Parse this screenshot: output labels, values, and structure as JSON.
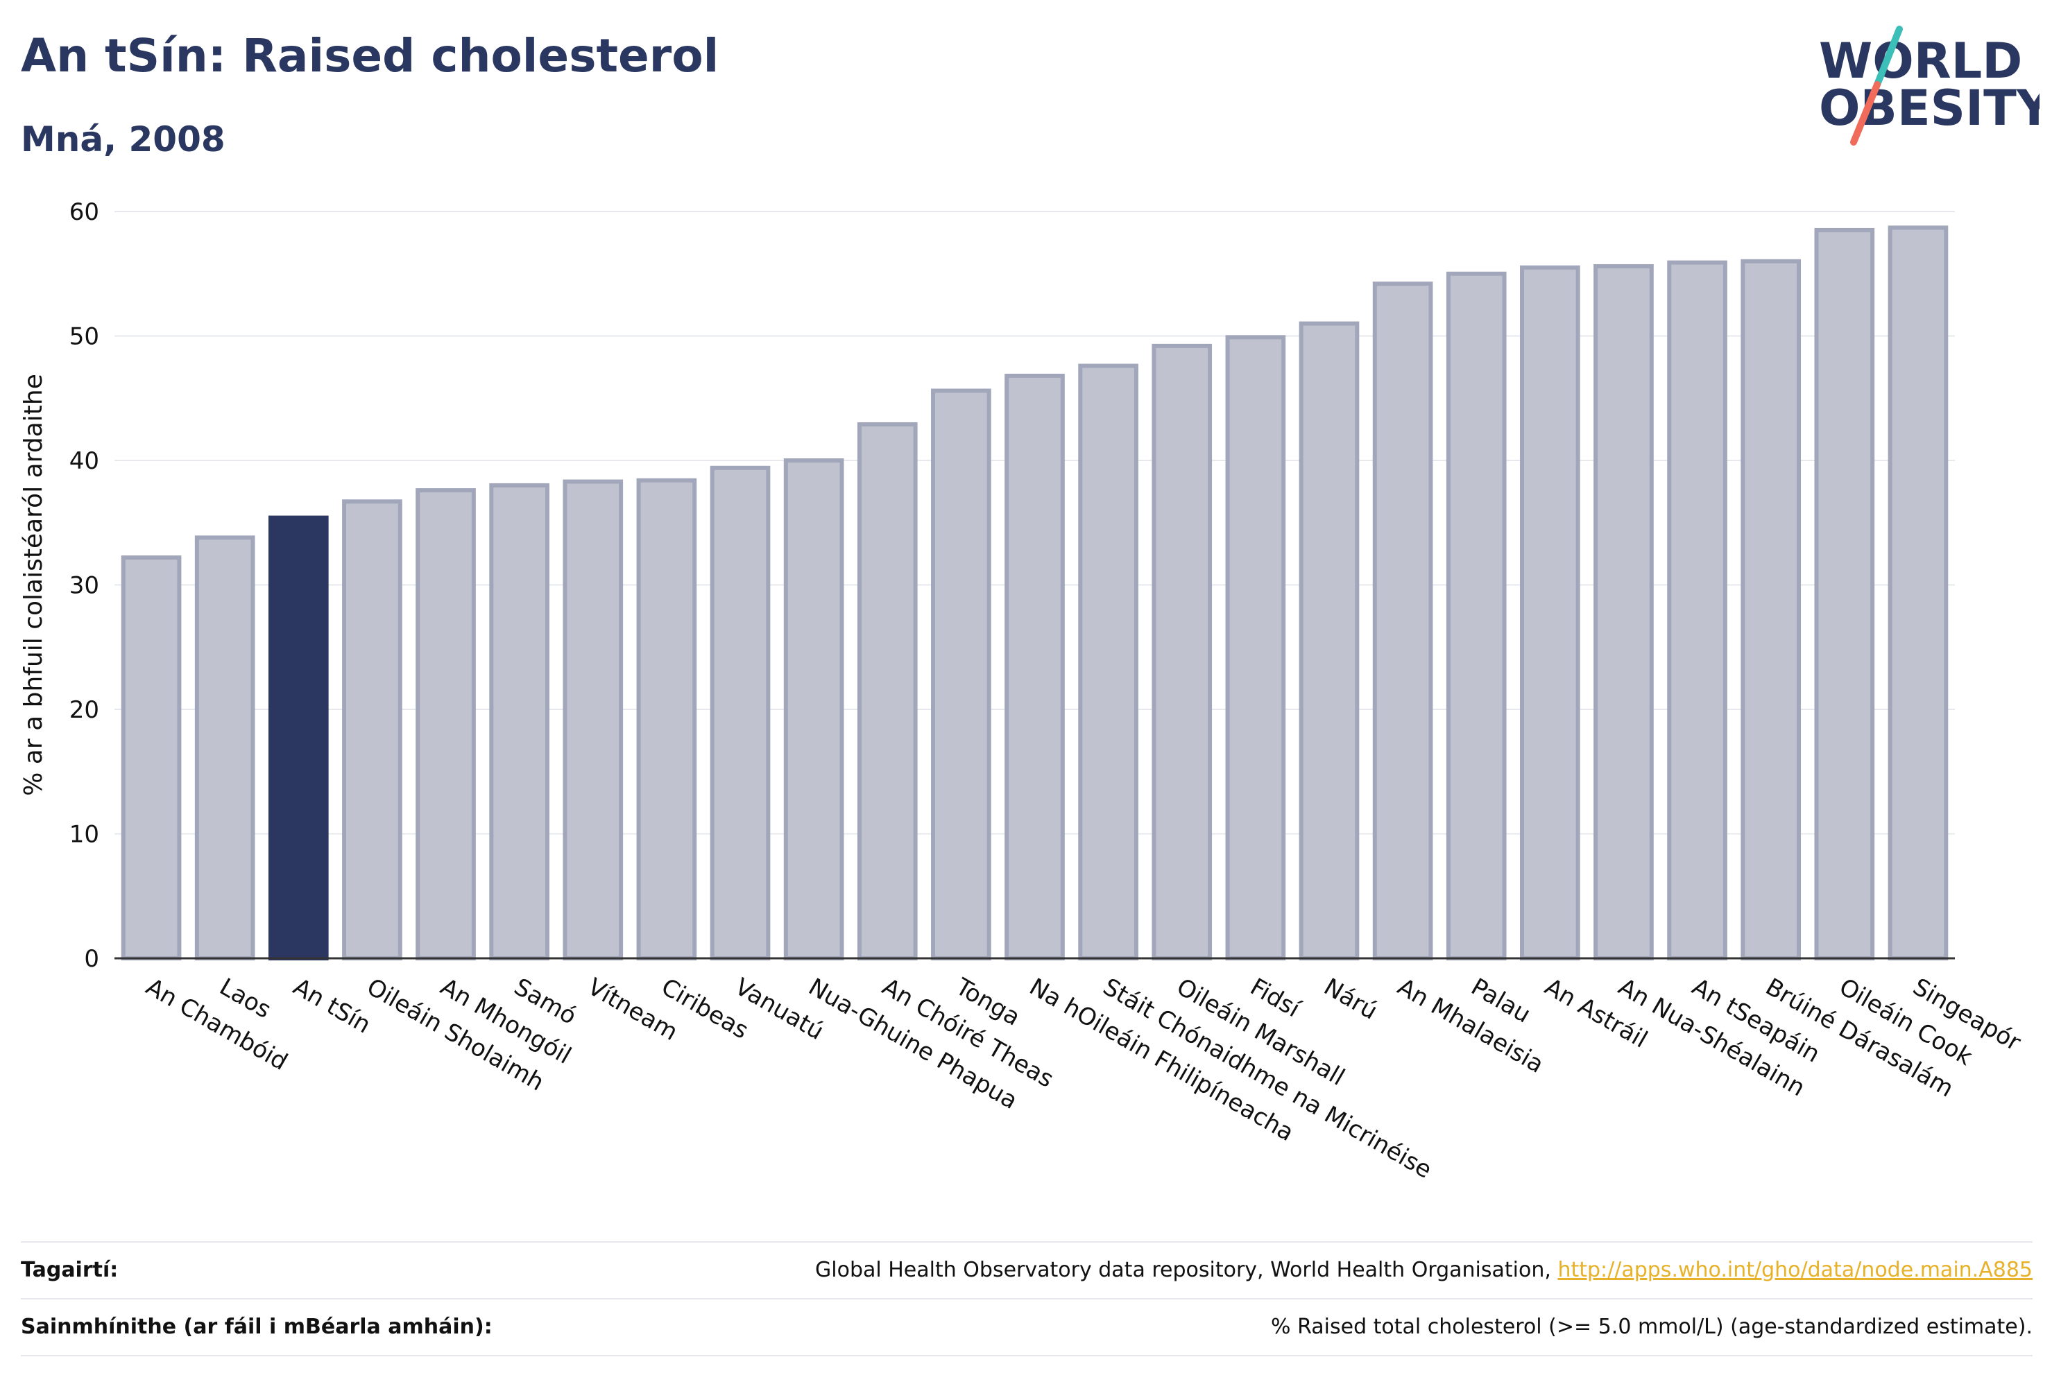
{
  "header": {
    "title": "An tSín: Raised cholesterol",
    "subtitle": "Mná, 2008"
  },
  "logo": {
    "line1": "WORLD",
    "line2": "OBESITY",
    "colors": {
      "text": "#2a3760",
      "slash_top": "#3bbfb8",
      "slash_bottom": "#f06b5a"
    }
  },
  "colors": {
    "bar_default": "#c0c3cf",
    "bar_default_edge": "#a1a6ba",
    "bar_highlight": "#2b3661",
    "grid": "#e6e8ee",
    "axis": "#333333"
  },
  "chart_data": {
    "type": "bar",
    "ylabel": "% ar a bhfuil colaistéaról ardaithe",
    "ylim": [
      0,
      60
    ],
    "yticks": [
      0,
      10,
      20,
      30,
      40,
      50,
      60
    ],
    "grid": true,
    "highlight": "An tSín",
    "categories": [
      "An Chambóid",
      "Laos",
      "An tSín",
      "Oileáin Sholaimh",
      "An Mhongóil",
      "Samó",
      "Vítneam",
      "Ciribeas",
      "Vanuatú",
      "Nua-Ghuine Phapua",
      "An Chóiré Theas",
      "Tonga",
      "Na hOileáin Fhilipíneacha",
      "Stáit Chónaidhme na Micrinéise",
      "Oileáin Marshall",
      "Fidsí",
      "Nárú",
      "An Mhalaeisia",
      "Palau",
      "An Astráil",
      "An Nua-Shéalainn",
      "An tSeapáin",
      "Brúiné Dárasalám",
      "Oileáin Cook",
      "Singeapór"
    ],
    "values": [
      32.2,
      33.8,
      35.4,
      36.7,
      37.6,
      38.0,
      38.3,
      38.4,
      39.4,
      40.0,
      42.9,
      45.6,
      46.8,
      47.6,
      49.2,
      49.9,
      51.0,
      54.2,
      55.0,
      55.5,
      55.6,
      55.9,
      56.0,
      58.5,
      58.7
    ]
  },
  "footer": {
    "references_label": "Tagairtí:",
    "references_text": "Global Health Observatory data repository, World Health Organisation, ",
    "references_link": "http://apps.who.int/gho/data/node.main.A885",
    "definitions_label": "Sainmhínithe (ar fáil i mBéarla amháin):",
    "definitions_text": "% Raised total cholesterol (>= 5.0 mmol/L) (age-standardized estimate)."
  }
}
